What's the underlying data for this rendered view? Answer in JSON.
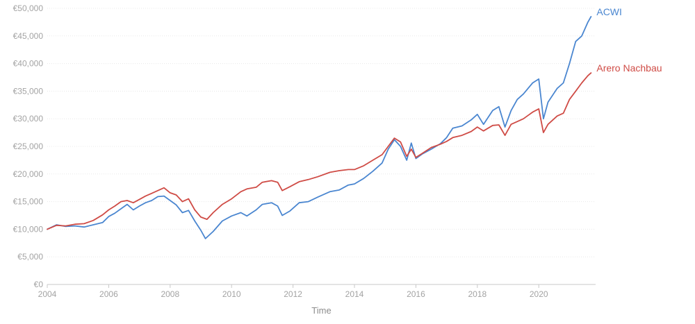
{
  "chart_data": {
    "type": "line",
    "title": "",
    "xlabel": "Time",
    "ylabel": "",
    "xlim": [
      2004.0,
      2021.85
    ],
    "ylim": [
      0,
      50000
    ],
    "y_ticks": [
      0,
      5000,
      10000,
      15000,
      20000,
      25000,
      30000,
      35000,
      40000,
      45000,
      50000
    ],
    "y_tick_labels": [
      "€0",
      "€5,000",
      "€10,000",
      "€15,000",
      "€20,000",
      "€25,000",
      "€30,000",
      "€35,000",
      "€40,000",
      "€45,000",
      "€50,000"
    ],
    "x_ticks": [
      2004,
      2006,
      2008,
      2010,
      2012,
      2014,
      2016,
      2018,
      2020
    ],
    "x_tick_labels": [
      "2004",
      "2006",
      "2008",
      "2010",
      "2012",
      "2014",
      "2016",
      "2018",
      "2020"
    ],
    "grid": "horizontal",
    "legend": "end-of-line labels",
    "series": [
      {
        "name": "ACWI",
        "color": "#4a86d0",
        "points": [
          [
            2004.0,
            10000
          ],
          [
            2004.3,
            10800
          ],
          [
            2004.6,
            10500
          ],
          [
            2004.9,
            10600
          ],
          [
            2005.2,
            10400
          ],
          [
            2005.5,
            10800
          ],
          [
            2005.8,
            11200
          ],
          [
            2006.0,
            12300
          ],
          [
            2006.2,
            12900
          ],
          [
            2006.4,
            13700
          ],
          [
            2006.6,
            14500
          ],
          [
            2006.8,
            13500
          ],
          [
            2007.0,
            14200
          ],
          [
            2007.2,
            14800
          ],
          [
            2007.4,
            15200
          ],
          [
            2007.6,
            15900
          ],
          [
            2007.8,
            16000
          ],
          [
            2008.0,
            15200
          ],
          [
            2008.2,
            14400
          ],
          [
            2008.4,
            13000
          ],
          [
            2008.6,
            13400
          ],
          [
            2008.8,
            11500
          ],
          [
            2009.0,
            9800
          ],
          [
            2009.15,
            8300
          ],
          [
            2009.4,
            9600
          ],
          [
            2009.7,
            11500
          ],
          [
            2010.0,
            12400
          ],
          [
            2010.3,
            13000
          ],
          [
            2010.5,
            12400
          ],
          [
            2010.8,
            13500
          ],
          [
            2011.0,
            14500
          ],
          [
            2011.3,
            14800
          ],
          [
            2011.5,
            14200
          ],
          [
            2011.65,
            12500
          ],
          [
            2011.9,
            13300
          ],
          [
            2012.2,
            14800
          ],
          [
            2012.5,
            15000
          ],
          [
            2012.8,
            15800
          ],
          [
            2013.2,
            16800
          ],
          [
            2013.5,
            17100
          ],
          [
            2013.8,
            18000
          ],
          [
            2014.0,
            18200
          ],
          [
            2014.3,
            19200
          ],
          [
            2014.6,
            20500
          ],
          [
            2014.9,
            22000
          ],
          [
            2015.1,
            24500
          ],
          [
            2015.3,
            26200
          ],
          [
            2015.5,
            25000
          ],
          [
            2015.7,
            22500
          ],
          [
            2015.85,
            25600
          ],
          [
            2016.0,
            22800
          ],
          [
            2016.2,
            23600
          ],
          [
            2016.5,
            24500
          ],
          [
            2016.8,
            25500
          ],
          [
            2017.0,
            26600
          ],
          [
            2017.2,
            28300
          ],
          [
            2017.5,
            28700
          ],
          [
            2017.8,
            29800
          ],
          [
            2018.0,
            30800
          ],
          [
            2018.2,
            29000
          ],
          [
            2018.5,
            31500
          ],
          [
            2018.7,
            32200
          ],
          [
            2018.9,
            28500
          ],
          [
            2019.1,
            31500
          ],
          [
            2019.3,
            33500
          ],
          [
            2019.5,
            34500
          ],
          [
            2019.8,
            36500
          ],
          [
            2020.0,
            37200
          ],
          [
            2020.15,
            30000
          ],
          [
            2020.3,
            33000
          ],
          [
            2020.6,
            35500
          ],
          [
            2020.8,
            36500
          ],
          [
            2021.0,
            40000
          ],
          [
            2021.2,
            44000
          ],
          [
            2021.4,
            45000
          ],
          [
            2021.6,
            47500
          ],
          [
            2021.7,
            48500
          ]
        ]
      },
      {
        "name": "Arero Nachbau",
        "color": "#cf4b45",
        "points": [
          [
            2004.0,
            10000
          ],
          [
            2004.3,
            10700
          ],
          [
            2004.6,
            10600
          ],
          [
            2004.9,
            10900
          ],
          [
            2005.2,
            11000
          ],
          [
            2005.5,
            11600
          ],
          [
            2005.8,
            12600
          ],
          [
            2006.0,
            13500
          ],
          [
            2006.2,
            14200
          ],
          [
            2006.4,
            15000
          ],
          [
            2006.6,
            15200
          ],
          [
            2006.8,
            14800
          ],
          [
            2007.0,
            15400
          ],
          [
            2007.2,
            16000
          ],
          [
            2007.4,
            16500
          ],
          [
            2007.6,
            17000
          ],
          [
            2007.8,
            17500
          ],
          [
            2008.0,
            16600
          ],
          [
            2008.2,
            16200
          ],
          [
            2008.4,
            15000
          ],
          [
            2008.6,
            15500
          ],
          [
            2008.8,
            13500
          ],
          [
            2009.0,
            12200
          ],
          [
            2009.2,
            11800
          ],
          [
            2009.4,
            13000
          ],
          [
            2009.7,
            14500
          ],
          [
            2010.0,
            15500
          ],
          [
            2010.3,
            16800
          ],
          [
            2010.5,
            17300
          ],
          [
            2010.8,
            17600
          ],
          [
            2011.0,
            18500
          ],
          [
            2011.3,
            18800
          ],
          [
            2011.5,
            18500
          ],
          [
            2011.65,
            17000
          ],
          [
            2011.9,
            17700
          ],
          [
            2012.2,
            18600
          ],
          [
            2012.5,
            19000
          ],
          [
            2012.8,
            19500
          ],
          [
            2013.2,
            20300
          ],
          [
            2013.5,
            20600
          ],
          [
            2013.8,
            20800
          ],
          [
            2014.0,
            20800
          ],
          [
            2014.3,
            21500
          ],
          [
            2014.6,
            22500
          ],
          [
            2014.9,
            23500
          ],
          [
            2015.1,
            25000
          ],
          [
            2015.3,
            26500
          ],
          [
            2015.5,
            25800
          ],
          [
            2015.7,
            23200
          ],
          [
            2015.85,
            24500
          ],
          [
            2016.0,
            23000
          ],
          [
            2016.2,
            23700
          ],
          [
            2016.5,
            24800
          ],
          [
            2016.8,
            25400
          ],
          [
            2017.0,
            25900
          ],
          [
            2017.2,
            26600
          ],
          [
            2017.5,
            27000
          ],
          [
            2017.8,
            27700
          ],
          [
            2018.0,
            28500
          ],
          [
            2018.2,
            27800
          ],
          [
            2018.5,
            28800
          ],
          [
            2018.7,
            28900
          ],
          [
            2018.9,
            27000
          ],
          [
            2019.1,
            29000
          ],
          [
            2019.3,
            29500
          ],
          [
            2019.5,
            30000
          ],
          [
            2019.8,
            31200
          ],
          [
            2020.0,
            31800
          ],
          [
            2020.15,
            27500
          ],
          [
            2020.3,
            29000
          ],
          [
            2020.6,
            30500
          ],
          [
            2020.8,
            31000
          ],
          [
            2021.0,
            33500
          ],
          [
            2021.2,
            35000
          ],
          [
            2021.4,
            36500
          ],
          [
            2021.6,
            37800
          ],
          [
            2021.7,
            38300
          ]
        ]
      }
    ]
  }
}
